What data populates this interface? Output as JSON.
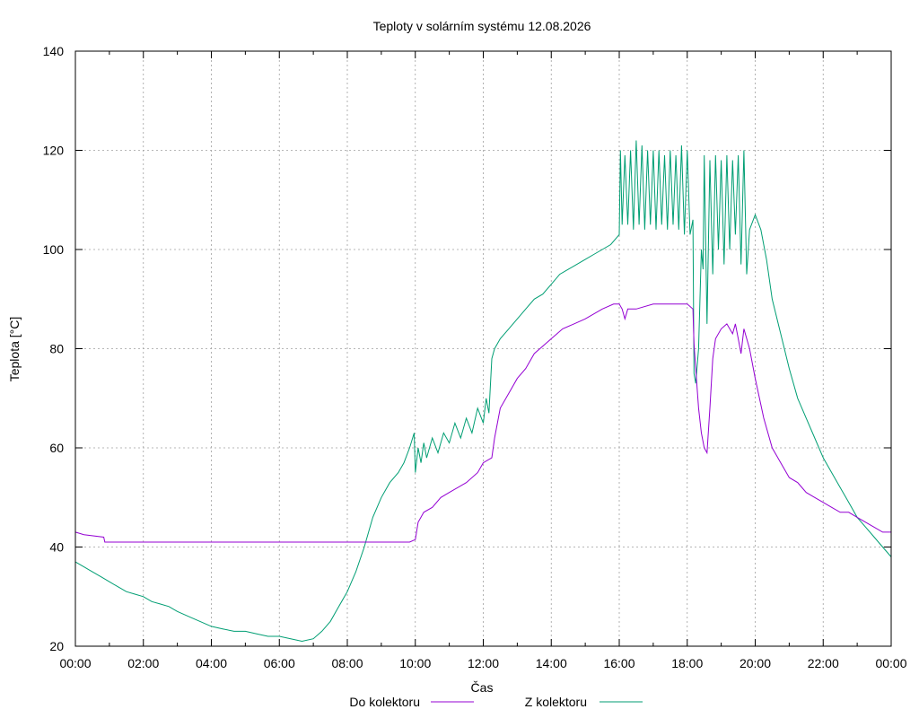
{
  "chart_data": {
    "type": "line",
    "title": "Teploty v solárním systému 12.08.2026",
    "xlabel": "Čas",
    "ylabel": "Teplota [°C]",
    "xlim": [
      "00:00",
      "24:00"
    ],
    "ylim": [
      20,
      140
    ],
    "grid": true,
    "legend_position": "bottom",
    "x_ticks": [
      "00:00",
      "02:00",
      "04:00",
      "06:00",
      "08:00",
      "10:00",
      "12:00",
      "14:00",
      "16:00",
      "18:00",
      "20:00",
      "22:00",
      "00:00"
    ],
    "y_ticks": [
      20,
      40,
      60,
      80,
      100,
      120,
      140
    ],
    "series": [
      {
        "name": "Do kolektoru",
        "color": "#9400d3",
        "points": [
          [
            "00:00",
            43
          ],
          [
            "00:15",
            42.5
          ],
          [
            "00:50",
            42
          ],
          [
            "00:52",
            41
          ],
          [
            "03:00",
            41
          ],
          [
            "06:00",
            41
          ],
          [
            "09:00",
            41
          ],
          [
            "09:50",
            41
          ],
          [
            "10:00",
            41.5
          ],
          [
            "10:05",
            45
          ],
          [
            "10:15",
            47
          ],
          [
            "10:30",
            48
          ],
          [
            "10:45",
            50
          ],
          [
            "11:00",
            51
          ],
          [
            "11:30",
            53
          ],
          [
            "11:50",
            55
          ],
          [
            "12:00",
            57
          ],
          [
            "12:15",
            58
          ],
          [
            "12:20",
            62
          ],
          [
            "12:30",
            68
          ],
          [
            "12:45",
            71
          ],
          [
            "13:00",
            74
          ],
          [
            "13:15",
            76
          ],
          [
            "13:30",
            79
          ],
          [
            "13:50",
            81
          ],
          [
            "14:00",
            82
          ],
          [
            "14:20",
            84
          ],
          [
            "14:40",
            85
          ],
          [
            "15:00",
            86
          ],
          [
            "15:30",
            88
          ],
          [
            "15:50",
            89
          ],
          [
            "16:00",
            89
          ],
          [
            "16:05",
            88
          ],
          [
            "16:10",
            86
          ],
          [
            "16:15",
            88
          ],
          [
            "16:30",
            88
          ],
          [
            "17:00",
            89
          ],
          [
            "17:30",
            89
          ],
          [
            "18:00",
            89
          ],
          [
            "18:10",
            88
          ],
          [
            "18:12",
            81
          ],
          [
            "18:15",
            76
          ],
          [
            "18:20",
            68
          ],
          [
            "18:25",
            63
          ],
          [
            "18:30",
            60
          ],
          [
            "18:35",
            59
          ],
          [
            "18:40",
            68
          ],
          [
            "18:45",
            78
          ],
          [
            "18:50",
            82
          ],
          [
            "19:00",
            84
          ],
          [
            "19:10",
            85
          ],
          [
            "19:20",
            83
          ],
          [
            "19:25",
            85
          ],
          [
            "19:30",
            82
          ],
          [
            "19:35",
            79
          ],
          [
            "19:40",
            84
          ],
          [
            "19:50",
            80
          ],
          [
            "20:00",
            74
          ],
          [
            "20:15",
            66
          ],
          [
            "20:30",
            60
          ],
          [
            "20:45",
            57
          ],
          [
            "21:00",
            54
          ],
          [
            "21:15",
            53
          ],
          [
            "21:30",
            51
          ],
          [
            "21:45",
            50
          ],
          [
            "22:00",
            49
          ],
          [
            "22:15",
            48
          ],
          [
            "22:30",
            47
          ],
          [
            "22:45",
            47
          ],
          [
            "23:00",
            46
          ],
          [
            "23:15",
            45
          ],
          [
            "23:30",
            44
          ],
          [
            "23:45",
            43
          ],
          [
            "24:00",
            43
          ]
        ]
      },
      {
        "name": "Z kolektoru",
        "color": "#009e73",
        "points": [
          [
            "00:00",
            37
          ],
          [
            "00:15",
            36
          ],
          [
            "00:30",
            35
          ],
          [
            "00:45",
            34
          ],
          [
            "01:00",
            33
          ],
          [
            "01:15",
            32
          ],
          [
            "01:30",
            31
          ],
          [
            "01:45",
            30.5
          ],
          [
            "02:00",
            30
          ],
          [
            "02:15",
            29
          ],
          [
            "02:30",
            28.5
          ],
          [
            "02:45",
            28
          ],
          [
            "03:00",
            27
          ],
          [
            "03:20",
            26
          ],
          [
            "03:40",
            25
          ],
          [
            "04:00",
            24
          ],
          [
            "04:20",
            23.5
          ],
          [
            "04:40",
            23
          ],
          [
            "05:00",
            23
          ],
          [
            "05:20",
            22.5
          ],
          [
            "05:40",
            22
          ],
          [
            "06:00",
            22
          ],
          [
            "06:20",
            21.5
          ],
          [
            "06:40",
            21
          ],
          [
            "07:00",
            21.5
          ],
          [
            "07:15",
            23
          ],
          [
            "07:30",
            25
          ],
          [
            "07:45",
            28
          ],
          [
            "08:00",
            31
          ],
          [
            "08:15",
            35
          ],
          [
            "08:30",
            40
          ],
          [
            "08:45",
            46
          ],
          [
            "09:00",
            50
          ],
          [
            "09:15",
            53
          ],
          [
            "09:30",
            55
          ],
          [
            "09:40",
            57
          ],
          [
            "09:50",
            60
          ],
          [
            "09:58",
            63
          ],
          [
            "10:00",
            55
          ],
          [
            "10:05",
            60
          ],
          [
            "10:10",
            57
          ],
          [
            "10:15",
            61
          ],
          [
            "10:20",
            58
          ],
          [
            "10:30",
            62
          ],
          [
            "10:40",
            59
          ],
          [
            "10:50",
            63
          ],
          [
            "11:00",
            61
          ],
          [
            "11:10",
            65
          ],
          [
            "11:20",
            62
          ],
          [
            "11:30",
            66
          ],
          [
            "11:40",
            63
          ],
          [
            "11:50",
            68
          ],
          [
            "12:00",
            65
          ],
          [
            "12:05",
            70
          ],
          [
            "12:10",
            67
          ],
          [
            "12:15",
            78
          ],
          [
            "12:20",
            80
          ],
          [
            "12:30",
            82
          ],
          [
            "12:45",
            84
          ],
          [
            "13:00",
            86
          ],
          [
            "13:15",
            88
          ],
          [
            "13:30",
            90
          ],
          [
            "13:45",
            91
          ],
          [
            "14:00",
            93
          ],
          [
            "14:15",
            95
          ],
          [
            "14:30",
            96
          ],
          [
            "14:45",
            97
          ],
          [
            "15:00",
            98
          ],
          [
            "15:15",
            99
          ],
          [
            "15:30",
            100
          ],
          [
            "15:45",
            101
          ],
          [
            "16:00",
            103
          ],
          [
            "16:02",
            120
          ],
          [
            "16:05",
            105
          ],
          [
            "16:10",
            119
          ],
          [
            "16:15",
            105
          ],
          [
            "16:20",
            120
          ],
          [
            "16:25",
            104
          ],
          [
            "16:30",
            122
          ],
          [
            "16:35",
            105
          ],
          [
            "16:40",
            121
          ],
          [
            "16:45",
            104
          ],
          [
            "16:50",
            120
          ],
          [
            "16:55",
            105
          ],
          [
            "17:00",
            120
          ],
          [
            "17:05",
            104
          ],
          [
            "17:10",
            120
          ],
          [
            "17:15",
            105
          ],
          [
            "17:20",
            119
          ],
          [
            "17:25",
            104
          ],
          [
            "17:30",
            120
          ],
          [
            "17:35",
            105
          ],
          [
            "17:40",
            119
          ],
          [
            "17:45",
            104
          ],
          [
            "17:50",
            121
          ],
          [
            "17:55",
            103
          ],
          [
            "18:00",
            120
          ],
          [
            "18:05",
            103
          ],
          [
            "18:10",
            106
          ],
          [
            "18:12",
            75
          ],
          [
            "18:15",
            73
          ],
          [
            "18:20",
            80
          ],
          [
            "18:25",
            100
          ],
          [
            "18:28",
            96
          ],
          [
            "18:30",
            119
          ],
          [
            "18:35",
            85
          ],
          [
            "18:40",
            118
          ],
          [
            "18:45",
            95
          ],
          [
            "18:50",
            119
          ],
          [
            "18:55",
            100
          ],
          [
            "19:00",
            118
          ],
          [
            "19:05",
            97
          ],
          [
            "19:10",
            119
          ],
          [
            "19:15",
            100
          ],
          [
            "19:20",
            118
          ],
          [
            "19:25",
            103
          ],
          [
            "19:30",
            119
          ],
          [
            "19:35",
            97
          ],
          [
            "19:40",
            120
          ],
          [
            "19:45",
            95
          ],
          [
            "19:50",
            104
          ],
          [
            "20:00",
            107
          ],
          [
            "20:10",
            104
          ],
          [
            "20:20",
            98
          ],
          [
            "20:30",
            90
          ],
          [
            "20:45",
            83
          ],
          [
            "21:00",
            76
          ],
          [
            "21:15",
            70
          ],
          [
            "21:30",
            66
          ],
          [
            "21:45",
            62
          ],
          [
            "22:00",
            58
          ],
          [
            "22:15",
            55
          ],
          [
            "22:30",
            52
          ],
          [
            "22:45",
            49
          ],
          [
            "23:00",
            46
          ],
          [
            "23:15",
            44
          ],
          [
            "23:30",
            42
          ],
          [
            "23:45",
            40
          ],
          [
            "24:00",
            38
          ]
        ]
      }
    ]
  }
}
